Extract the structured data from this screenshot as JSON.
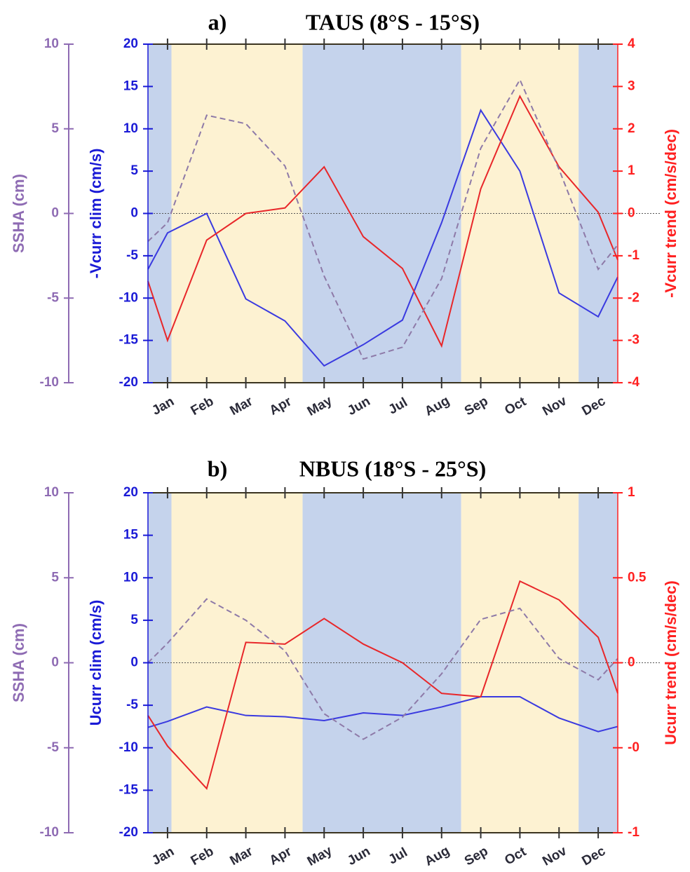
{
  "chart_data": [
    {
      "type": "line",
      "panel_label": "a)",
      "title": "TAUS (8°S - 15°S)",
      "x": [
        0.5,
        1,
        2,
        3,
        4,
        5,
        6,
        7,
        8,
        9,
        10,
        11,
        12,
        12.5
      ],
      "xlim": [
        0.5,
        12.5
      ],
      "xticks": [
        {
          "value": 1,
          "label": "Jan"
        },
        {
          "value": 2,
          "label": "Feb"
        },
        {
          "value": 3,
          "label": "Mar"
        },
        {
          "value": 4,
          "label": "Apr"
        },
        {
          "value": 5,
          "label": "May"
        },
        {
          "value": 6,
          "label": "Jun"
        },
        {
          "value": 7,
          "label": "Jul"
        },
        {
          "value": 8,
          "label": "Aug"
        },
        {
          "value": 9,
          "label": "Sep"
        },
        {
          "value": 10,
          "label": "Oct"
        },
        {
          "value": 11,
          "label": "Nov"
        },
        {
          "value": 12,
          "label": "Dec"
        }
      ],
      "shading": [
        {
          "start": 0.5,
          "end": 1.1,
          "color": "#c5d3ec"
        },
        {
          "start": 1.1,
          "end": 4.45,
          "color": "#fdf2d2"
        },
        {
          "start": 4.45,
          "end": 8.5,
          "color": "#c5d3ec"
        },
        {
          "start": 8.5,
          "end": 11.5,
          "color": "#fdf2d2"
        },
        {
          "start": 11.5,
          "end": 12.5,
          "color": "#c5d3ec"
        }
      ],
      "ylabel": "-Vcurr clim (cm/s)",
      "ylim": [
        -20,
        20
      ],
      "yticks": [
        -20,
        -15,
        -10,
        -5,
        0,
        5,
        10,
        15,
        20
      ],
      "ycolor": "#1a1ad6",
      "y2label": "-Vcurr trend (cm/s/dec)",
      "y2lim": [
        -4,
        4
      ],
      "y2ticks": [
        -4,
        -3,
        -2,
        -1,
        0,
        1,
        2,
        3,
        4
      ],
      "y2color": "#ff2020",
      "y3label": "SSHA (cm)",
      "y3lim": [
        -10,
        10
      ],
      "y3ticks": [
        -10,
        -5,
        0,
        5,
        10
      ],
      "y3color": "#8e6bb3",
      "zero_line": true,
      "series": [
        {
          "axis": "y",
          "color": "#3a3ae0",
          "dash": false,
          "values": [
            -6.6,
            -2.3,
            0,
            -10.1,
            -12.7,
            -18,
            -15.5,
            -12.6,
            -1.1,
            12.2,
            5.0,
            -9.4,
            -12.2,
            -7.5
          ]
        },
        {
          "axis": "y2",
          "color": "#e8272a",
          "dash": false,
          "values": [
            -1.6,
            -3.0,
            -0.63,
            0,
            0.13,
            1.1,
            -0.55,
            -1.3,
            -3.13,
            0.58,
            2.77,
            1.1,
            0.03,
            -1.1
          ]
        },
        {
          "axis": "y3",
          "color": "#8e7aa8",
          "dash": true,
          "values": [
            -1.65,
            -0.55,
            5.8,
            5.3,
            2.8,
            -3.7,
            -8.6,
            -7.9,
            -3.85,
            3.85,
            7.9,
            2.6,
            -3.3,
            -1.85
          ]
        }
      ]
    },
    {
      "type": "line",
      "panel_label": "b)",
      "title": "NBUS (18°S - 25°S)",
      "x": [
        0.5,
        1,
        2,
        3,
        4,
        5,
        6,
        7,
        8,
        9,
        10,
        11,
        12,
        12.5
      ],
      "xlim": [
        0.5,
        12.5
      ],
      "xticks": [
        {
          "value": 1,
          "label": "Jan"
        },
        {
          "value": 2,
          "label": "Feb"
        },
        {
          "value": 3,
          "label": "Mar"
        },
        {
          "value": 4,
          "label": "Apr"
        },
        {
          "value": 5,
          "label": "May"
        },
        {
          "value": 6,
          "label": "Jun"
        },
        {
          "value": 7,
          "label": "Jul"
        },
        {
          "value": 8,
          "label": "Aug"
        },
        {
          "value": 9,
          "label": "Sep"
        },
        {
          "value": 10,
          "label": "Oct"
        },
        {
          "value": 11,
          "label": "Nov"
        },
        {
          "value": 12,
          "label": "Dec"
        }
      ],
      "shading": [
        {
          "start": 0.5,
          "end": 1.1,
          "color": "#c5d3ec"
        },
        {
          "start": 1.1,
          "end": 4.45,
          "color": "#fdf2d2"
        },
        {
          "start": 4.45,
          "end": 8.5,
          "color": "#c5d3ec"
        },
        {
          "start": 8.5,
          "end": 11.5,
          "color": "#fdf2d2"
        },
        {
          "start": 11.5,
          "end": 12.5,
          "color": "#c5d3ec"
        }
      ],
      "ylabel": "Ucurr clim (cm/s)",
      "ylim": [
        -20,
        20
      ],
      "yticks": [
        -20,
        -15,
        -10,
        -5,
        0,
        5,
        10,
        15,
        20
      ],
      "ycolor": "#1a1ad6",
      "y2label": "Ucurr trend (cm/s/dec)",
      "y2lim": [
        -1,
        1
      ],
      "y2ticks": [
        -1,
        {
          "value": -0.5,
          "label": "-0"
        },
        0,
        0.5,
        1
      ],
      "y2color": "#ff2020",
      "y3label": "SSHA (cm)",
      "y3lim": [
        -10,
        10
      ],
      "y3ticks": [
        -10,
        -5,
        0,
        5,
        10
      ],
      "y3color": "#8e6bb3",
      "zero_line": true,
      "series": [
        {
          "axis": "y",
          "color": "#3a3ae0",
          "dash": false,
          "values": [
            -7.6,
            -6.9,
            -5.2,
            -6.2,
            -6.35,
            -6.8,
            -5.9,
            -6.2,
            -5.2,
            -4.0,
            -4.0,
            -6.5,
            -8.1,
            -7.5
          ]
        },
        {
          "axis": "y2",
          "color": "#e8272a",
          "dash": false,
          "values": [
            -0.31,
            -0.49,
            -0.74,
            0.12,
            0.11,
            0.26,
            0.11,
            0,
            -0.18,
            -0.2,
            0.48,
            0.37,
            0.15,
            -0.18
          ]
        },
        {
          "axis": "y3",
          "color": "#8e7aa8",
          "dash": true,
          "values": [
            0,
            1.15,
            3.75,
            2.5,
            0.7,
            -3.0,
            -4.5,
            -3.2,
            -0.65,
            2.55,
            3.2,
            0.25,
            -1.0,
            0.25
          ]
        }
      ]
    }
  ]
}
